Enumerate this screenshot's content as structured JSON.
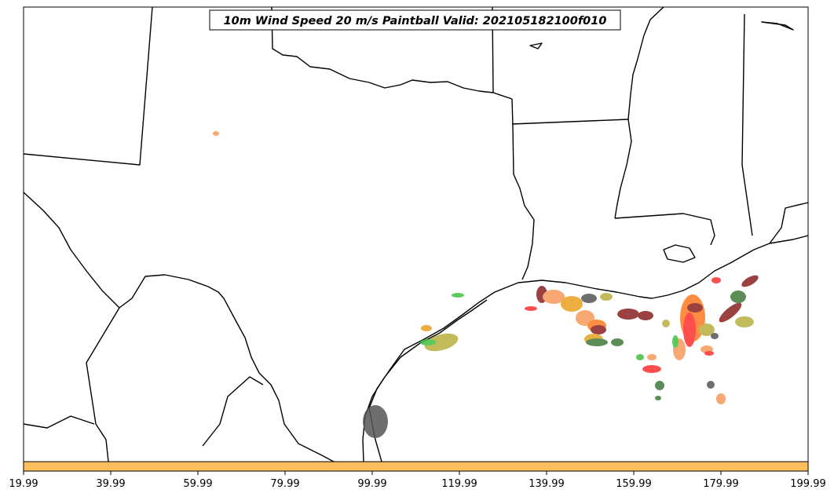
{
  "title": "10m Wind Speed 20 m/s Paintball Valid: 202105182100f010",
  "colorbar": {
    "color": "#ffbf5f",
    "ticks": [
      "19.99",
      "39.99",
      "59.99",
      "79.99",
      "99.99",
      "119.99",
      "139.99",
      "159.99",
      "179.99",
      "199.99"
    ]
  },
  "colors": {
    "red": "#ff3030",
    "orange": "#ff7a20",
    "light_orange": "#f79a5a",
    "gold": "#e8a020",
    "olive": "#b8b040",
    "green": "#40c040",
    "dark_green": "#407a3a",
    "brown": "#8a2020",
    "gray": "#555555"
  }
}
